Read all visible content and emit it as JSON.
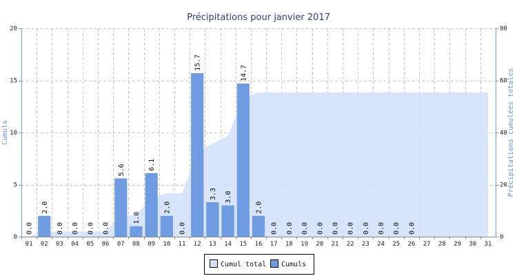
{
  "chart_data": {
    "type": "bar",
    "title": "Précipitations pour janvier 2017",
    "categories": [
      "01",
      "02",
      "03",
      "04",
      "05",
      "06",
      "07",
      "08",
      "09",
      "10",
      "11",
      "12",
      "13",
      "14",
      "15",
      "16",
      "17",
      "18",
      "19",
      "20",
      "21",
      "22",
      "23",
      "24",
      "25",
      "26",
      "27",
      "28",
      "29",
      "30",
      "31"
    ],
    "series": [
      {
        "name": "Cumuls",
        "type": "bar",
        "axis": "left",
        "values": [
          0.0,
          2.0,
          0.0,
          0.0,
          0.0,
          0.0,
          5.6,
          1.0,
          6.1,
          2.0,
          0.0,
          15.7,
          3.3,
          3.0,
          14.7,
          2.0,
          0.0,
          0.0,
          0.0,
          0.0,
          0.0,
          0.0,
          0.0,
          0.0,
          0.0,
          0.0,
          null,
          null,
          null,
          null,
          null
        ],
        "labels": [
          "0.0",
          "2.0",
          "0.0",
          "0.0",
          "0.0",
          "0.0",
          "5.6",
          "1.0",
          "6.1",
          "2.0",
          "0.0",
          "15.7",
          "3.3",
          "3.0",
          "14.7",
          "2.0",
          "0.0",
          "0.0",
          "0.0",
          "0.0",
          "0.0",
          "0.0",
          "0.0",
          "0.0",
          "0.0",
          "0.0",
          "",
          "",
          "",
          "",
          ""
        ],
        "color": "#6f9be0"
      },
      {
        "name": "Cumul total",
        "type": "area",
        "axis": "right",
        "values": [
          0.0,
          2.0,
          2.0,
          2.0,
          2.0,
          2.0,
          7.6,
          8.6,
          14.7,
          16.7,
          16.7,
          32.4,
          35.7,
          38.7,
          53.4,
          55.4,
          55.4,
          55.4,
          55.4,
          55.4,
          55.4,
          55.4,
          55.4,
          55.4,
          55.4,
          55.4,
          55.4,
          55.4,
          55.4,
          55.4,
          55.4
        ],
        "color": "#d3e1f8"
      }
    ],
    "ylabel_left": "Cumuls",
    "ylabel_right": "Précipitations cumulées totales",
    "ylim_left": [
      0,
      20
    ],
    "yticks_left": [
      0,
      5,
      10,
      15,
      20
    ],
    "ylim_right": [
      0,
      80
    ],
    "yticks_right": [
      0,
      20,
      40,
      60,
      80
    ],
    "grid": true,
    "legend": [
      "Cumul total",
      "Cumuls"
    ],
    "legend_position": "bottom-center"
  }
}
